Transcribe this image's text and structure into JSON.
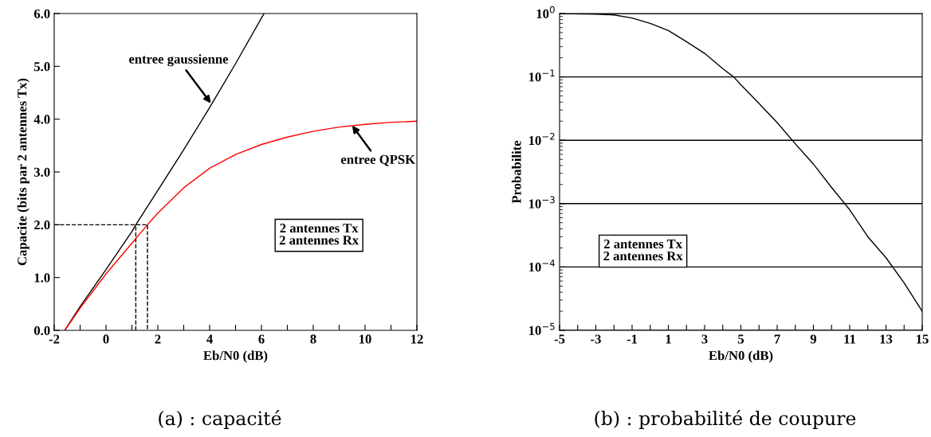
{
  "chart_data": [
    {
      "type": "line",
      "xlabel": "Eb/N0 (dB)",
      "ylabel": "Capacite (bits par 2 antennes Tx)",
      "xlim": [
        -2,
        12
      ],
      "ylim": [
        0,
        6
      ],
      "xticks": [
        -2,
        {
          "value": -1,
          "label": null
        },
        0,
        {
          "value": 1,
          "label": null
        },
        2,
        {
          "value": 3,
          "label": null
        },
        4,
        {
          "value": 5,
          "label": null
        },
        6,
        {
          "value": 7,
          "label": null
        },
        8,
        {
          "value": 9,
          "label": null
        },
        10,
        {
          "value": 11,
          "label": null
        },
        12
      ],
      "yticks": [
        {
          "value": 0,
          "label": "0.0"
        },
        {
          "value": 1,
          "label": "1.0"
        },
        {
          "value": 2,
          "label": "2.0"
        },
        {
          "value": 3,
          "label": "3.0"
        },
        {
          "value": 4,
          "label": "4.0"
        },
        {
          "value": 5,
          "label": "5.0"
        },
        {
          "value": 6,
          "label": "6.0"
        }
      ],
      "grid": false,
      "legend": false,
      "line_style": "solid",
      "series": [
        {
          "color": "#000000",
          "x": [
            -1.59,
            -1,
            0,
            1,
            1.15,
            2,
            3,
            4,
            5,
            6.1
          ],
          "values": [
            0,
            0.45,
            1.15,
            1.87,
            2,
            2.65,
            3.42,
            4.22,
            5.05,
            6.0
          ]
        },
        {
          "color": "#ff0000",
          "x": [
            -1.59,
            -1,
            0,
            1,
            1.6,
            2,
            3,
            4,
            5,
            6,
            7,
            8,
            9,
            10,
            11,
            12
          ],
          "values": [
            0,
            0.42,
            1.07,
            1.65,
            2.0,
            2.22,
            2.7,
            3.07,
            3.33,
            3.52,
            3.66,
            3.77,
            3.85,
            3.9,
            3.94,
            3.96
          ]
        },
        {
          "color": "#000000",
          "line_style": "dashed",
          "x": [
            -2,
            1.6,
            1.6
          ],
          "values": [
            2,
            2,
            0
          ]
        },
        {
          "color": "#000000",
          "line_style": "dashed",
          "x": [
            1.15,
            1.15
          ],
          "values": [
            0,
            2
          ]
        }
      ],
      "annotations": [
        {
          "text": "entree gaussienne",
          "x": 4.05,
          "y": 4.3
        },
        {
          "text": "entree QPSK",
          "x": 9.5,
          "y": 3.88
        },
        "2 antennes Tx\n2 antennes Rx",
        "(a) : capacité"
      ]
    },
    {
      "type": "line",
      "xlabel": "Eb/N0 (dB)",
      "ylabel": "Probabilite",
      "log": "y",
      "xlim": [
        -5,
        15
      ],
      "ylim": [
        1e-05,
        1
      ],
      "xticks": [
        -5,
        {
          "value": -4,
          "label": null
        },
        -3,
        {
          "value": -2,
          "label": null
        },
        -1,
        {
          "value": 0,
          "label": null
        },
        1,
        {
          "value": 2,
          "label": null
        },
        3,
        {
          "value": 4,
          "label": null
        },
        5,
        {
          "value": 6,
          "label": null
        },
        7,
        {
          "value": 8,
          "label": null
        },
        9,
        {
          "value": 10,
          "label": null
        },
        11,
        {
          "value": 12,
          "label": null
        },
        13,
        {
          "value": 14,
          "label": null
        },
        15
      ],
      "yticks": [
        {
          "value": 1e-05,
          "label": "10$^{−5}$"
        },
        {
          "value": 0.0001,
          "label": "10$^{−4}$"
        },
        {
          "value": 0.001,
          "label": "10$^{−3}$"
        },
        {
          "value": 0.01,
          "label": "10$^{−2}$"
        },
        {
          "value": 0.1,
          "label": "10$^{−1}$"
        },
        {
          "value": 1,
          "label": "10$^{0}$"
        }
      ],
      "grid": "y",
      "legend": false,
      "line_style": "solid",
      "series": [
        {
          "color": "#000000",
          "x": [
            -5,
            -3,
            -2,
            -1,
            0,
            1,
            2,
            3,
            4,
            4.6,
            5,
            6,
            7,
            8,
            9,
            10,
            11,
            12,
            13,
            14,
            15
          ],
          "values": [
            1.0,
            0.98,
            0.95,
            0.85,
            0.7,
            0.54,
            0.36,
            0.235,
            0.135,
            0.1,
            0.075,
            0.038,
            0.019,
            0.0088,
            0.0042,
            0.0018,
            0.0008,
            0.0003,
            0.00014,
            5.6e-05,
            2e-05
          ]
        }
      ],
      "annotations": [
        "2 antennes Tx\n2 antennes Rx",
        "(b) : probabilité de coupure"
      ]
    }
  ]
}
